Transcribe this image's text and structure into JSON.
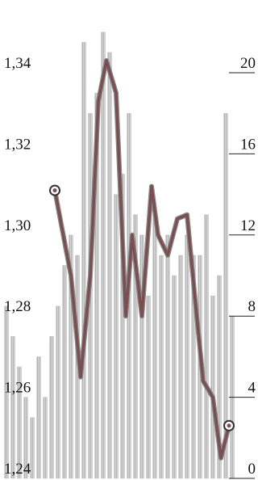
{
  "chart_data": {
    "type": "bar-line",
    "xlim": [
      0,
      40
    ],
    "ylim": [
      1.24,
      1.34
    ],
    "yticks": [
      {
        "value": 1.24,
        "label": "1,24"
      },
      {
        "value": 1.26,
        "label": "1,26"
      },
      {
        "value": 1.28,
        "label": "1,28"
      },
      {
        "value": 1.3,
        "label": "1,30"
      },
      {
        "value": 1.32,
        "label": "1,32"
      },
      {
        "value": 1.34,
        "label": "1,34"
      }
    ],
    "y2lim": [
      0,
      20
    ],
    "y2ticks": [
      0,
      4,
      8,
      12,
      16,
      20
    ],
    "grid": true,
    "series": [
      {
        "type": "bar",
        "axis": "y2",
        "color": "#c4c4c4",
        "x": [
          1,
          2,
          3,
          4,
          5,
          6,
          7,
          8,
          9,
          10,
          11,
          12,
          13,
          14,
          15,
          16,
          17,
          18,
          19,
          20,
          21,
          22,
          23,
          24,
          25,
          26,
          27,
          28,
          29,
          30,
          31,
          32,
          33,
          34,
          35,
          36
        ],
        "values": [
          8.5,
          7,
          5.5,
          4,
          3,
          6,
          4,
          7,
          8.5,
          10.5,
          12,
          11,
          21.5,
          18,
          19,
          22,
          21,
          14,
          15,
          18,
          13,
          12,
          9,
          13,
          11,
          12,
          10,
          11,
          12,
          11,
          11,
          13,
          9,
          10,
          18,
          8
        ]
      },
      {
        "type": "line",
        "axis": "y",
        "color": "#7a4f52",
        "x": [
          8.5,
          11,
          12.5,
          14,
          15.25,
          16.5,
          18,
          19.5,
          20.5,
          22,
          23.5,
          24.5,
          26,
          27.5,
          29,
          30.5,
          31.5,
          33,
          34.25,
          35.5
        ],
        "values": [
          1.311,
          1.29,
          1.265,
          1.29,
          1.333,
          1.343,
          1.335,
          1.28,
          1.3,
          1.28,
          1.312,
          1.3,
          1.295,
          1.304,
          1.305,
          1.28,
          1.264,
          1.26,
          1.245,
          1.253
        ]
      }
    ]
  }
}
